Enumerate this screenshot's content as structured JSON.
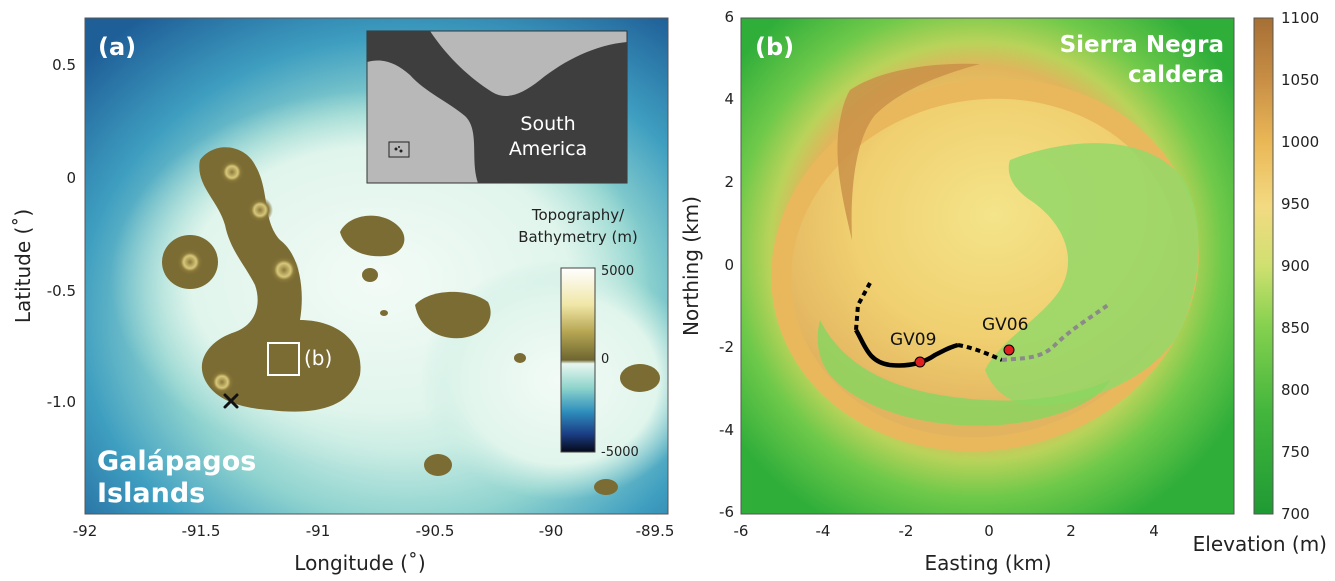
{
  "panel_a": {
    "label": "(a)",
    "region_label_line1": "Galápagos",
    "region_label_line2": "Islands",
    "xlabel": "Longitude (˚)",
    "ylabel": "Latitude (˚)",
    "x_ticks": [
      "-92",
      "-91.5",
      "-91",
      "-90.5",
      "-90",
      "-89.5"
    ],
    "y_ticks": [
      "0.5",
      "0",
      "-0.5",
      "-1.0"
    ],
    "inset_label_line1": "South",
    "inset_label_line2": "America",
    "box_label": "(b)",
    "colorbar_title_line1": "Topography/",
    "colorbar_title_line2": "Bathymetry (m)",
    "colorbar_ticks": [
      "5000",
      "0",
      "-5000"
    ]
  },
  "panel_b": {
    "label": "(b)",
    "title_line1": "Sierra Negra",
    "title_line2": "caldera",
    "xlabel": "Easting (km)",
    "ylabel": "Northing (km)",
    "x_ticks": [
      "-6",
      "-4",
      "-2",
      "0",
      "2",
      "4"
    ],
    "y_ticks": [
      "6",
      "4",
      "2",
      "0",
      "-2",
      "-4",
      "-6"
    ],
    "stations": [
      {
        "name": "GV09",
        "easting_km": -1.7,
        "northing_km": -2.35
      },
      {
        "name": "GV06",
        "easting_km": 0.5,
        "northing_km": -2.1
      }
    ],
    "colorbar_label": "Elevation (m)",
    "colorbar_ticks": [
      "1100",
      "1050",
      "1000",
      "950",
      "900",
      "850",
      "800",
      "750",
      "700"
    ],
    "colors": {
      "station_fill": "#e02020",
      "track_solid": "#000000",
      "track_grey": "#8a8a8a"
    }
  }
}
